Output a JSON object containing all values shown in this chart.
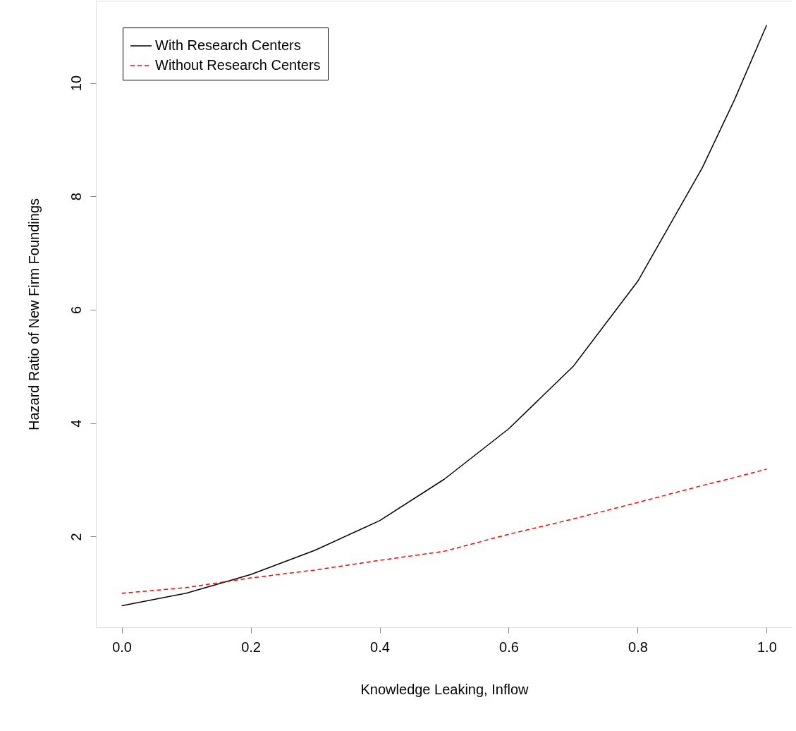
{
  "chart_data": {
    "type": "line",
    "xlabel": "Knowledge Leaking, Inflow",
    "ylabel": "Hazard Ratio of New Firm Foundings",
    "x": [
      0,
      0.1,
      0.2,
      0.3,
      0.4,
      0.5,
      0.6,
      0.7,
      0.8,
      0.9,
      0.95,
      1.0
    ],
    "series": [
      {
        "name": "With Research Centers",
        "color": "#000000",
        "line_style": "solid",
        "values": [
          0.78,
          1.0,
          1.33,
          1.76,
          2.28,
          3.01,
          3.9,
          5.0,
          6.5,
          8.5,
          9.7,
          11.02
        ]
      },
      {
        "name": "Without Research Centers",
        "color": "#ff0000",
        "line_style": "dashed",
        "values": [
          1.0,
          1.1,
          1.27,
          1.41,
          1.58,
          1.74,
          2.04,
          2.31,
          2.6,
          2.9,
          3.04,
          3.19
        ]
      }
    ],
    "xlim": [
      -0.04,
      1.04
    ],
    "ylim": [
      0.4,
      11.45
    ],
    "xticks": [
      {
        "value": 0,
        "label": "0.0"
      },
      0.2,
      0.4,
      0.6,
      0.8,
      {
        "value": 1,
        "label": "1.0"
      }
    ],
    "yticks": [
      2,
      4,
      6,
      8,
      10
    ],
    "grid": false,
    "legend": "top left",
    "marker": "none"
  }
}
